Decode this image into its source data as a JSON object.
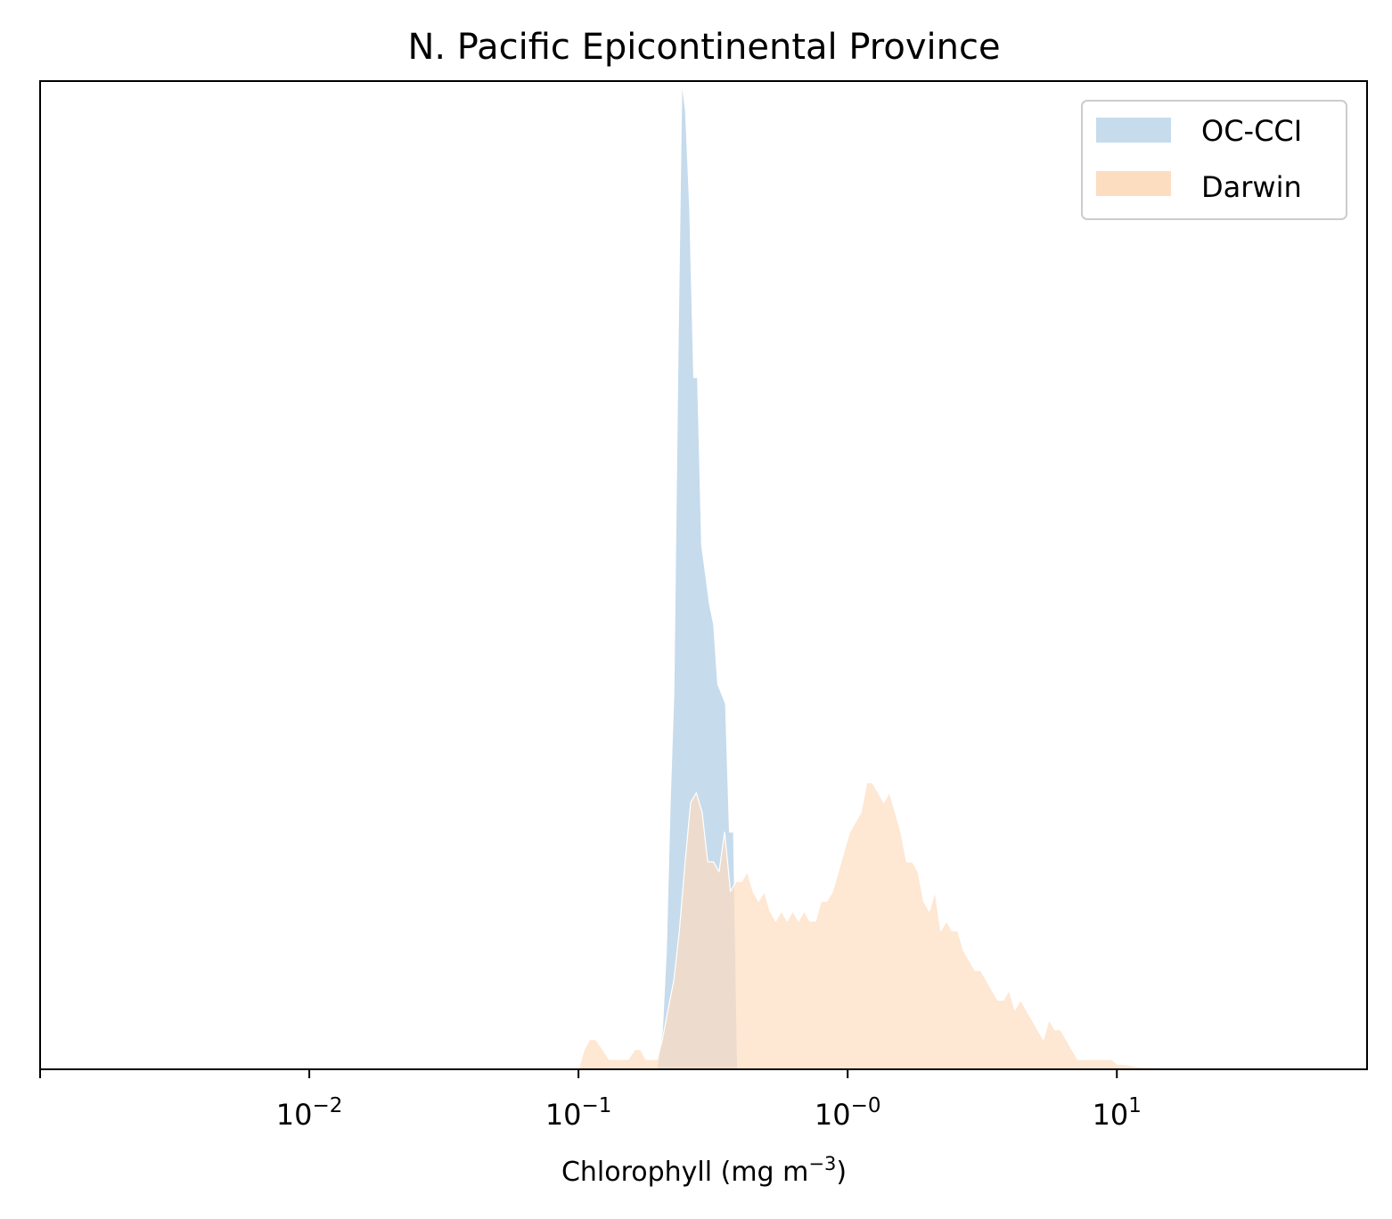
{
  "chart_data": {
    "type": "area",
    "title": "N. Pacific Epicontinental Province",
    "xlabel": "Chlorophyll  (mg m",
    "xlabel_sup": "−3",
    "xlabel_close": ")",
    "ylabel": "",
    "xscale": "log",
    "xlim": [
      0.001,
      85
    ],
    "ylim": [
      0,
      1
    ],
    "y_ticks_shown": false,
    "grid": false,
    "legend_position": "upper right",
    "x_ticks": [
      {
        "value": 0.01,
        "base": "10",
        "exp": "−2"
      },
      {
        "value": 0.1,
        "base": "10",
        "exp": "−1"
      },
      {
        "value": 1,
        "base": "10",
        "exp": "−0"
      },
      {
        "value": 10,
        "base": "10",
        "exp": "1"
      }
    ],
    "series": [
      {
        "name": "OC-CCI",
        "color": "#c6dbec",
        "points": [
          [
            0.195,
            0.0
          ],
          [
            0.198,
            0.01
          ],
          [
            0.205,
            0.04
          ],
          [
            0.212,
            0.12
          ],
          [
            0.219,
            0.27
          ],
          [
            0.226,
            0.38
          ],
          [
            0.234,
            0.72
          ],
          [
            0.242,
            1.0
          ],
          [
            0.25,
            0.97
          ],
          [
            0.259,
            0.87
          ],
          [
            0.268,
            0.7
          ],
          [
            0.277,
            0.7
          ],
          [
            0.287,
            0.53
          ],
          [
            0.297,
            0.5
          ],
          [
            0.307,
            0.47
          ],
          [
            0.318,
            0.45
          ],
          [
            0.329,
            0.39
          ],
          [
            0.34,
            0.38
          ],
          [
            0.352,
            0.37
          ],
          [
            0.364,
            0.24
          ],
          [
            0.377,
            0.24
          ],
          [
            0.39,
            0.0
          ]
        ]
      },
      {
        "name": "Darwin",
        "color": "#fdddc0",
        "points": [
          [
            0.1,
            0.0
          ],
          [
            0.105,
            0.02
          ],
          [
            0.11,
            0.03
          ],
          [
            0.116,
            0.03
          ],
          [
            0.123,
            0.02
          ],
          [
            0.13,
            0.01
          ],
          [
            0.137,
            0.01
          ],
          [
            0.145,
            0.01
          ],
          [
            0.153,
            0.01
          ],
          [
            0.162,
            0.02
          ],
          [
            0.17,
            0.02
          ],
          [
            0.178,
            0.01
          ],
          [
            0.187,
            0.01
          ],
          [
            0.196,
            0.01
          ],
          [
            0.205,
            0.03
          ],
          [
            0.215,
            0.06
          ],
          [
            0.226,
            0.09
          ],
          [
            0.237,
            0.14
          ],
          [
            0.249,
            0.21
          ],
          [
            0.261,
            0.27
          ],
          [
            0.274,
            0.28
          ],
          [
            0.288,
            0.26
          ],
          [
            0.302,
            0.21
          ],
          [
            0.317,
            0.21
          ],
          [
            0.333,
            0.2
          ],
          [
            0.349,
            0.24
          ],
          [
            0.367,
            0.18
          ],
          [
            0.385,
            0.19
          ],
          [
            0.404,
            0.19
          ],
          [
            0.424,
            0.2
          ],
          [
            0.445,
            0.18
          ],
          [
            0.467,
            0.17
          ],
          [
            0.49,
            0.18
          ],
          [
            0.515,
            0.16
          ],
          [
            0.54,
            0.15
          ],
          [
            0.567,
            0.16
          ],
          [
            0.596,
            0.15
          ],
          [
            0.625,
            0.16
          ],
          [
            0.657,
            0.15
          ],
          [
            0.689,
            0.16
          ],
          [
            0.724,
            0.15
          ],
          [
            0.76,
            0.15
          ],
          [
            0.797,
            0.17
          ],
          [
            0.837,
            0.17
          ],
          [
            0.879,
            0.18
          ],
          [
            0.923,
            0.2
          ],
          [
            0.969,
            0.22
          ],
          [
            1.017,
            0.24
          ],
          [
            1.068,
            0.25
          ],
          [
            1.121,
            0.26
          ],
          [
            1.177,
            0.29
          ],
          [
            1.236,
            0.29
          ],
          [
            1.298,
            0.28
          ],
          [
            1.362,
            0.27
          ],
          [
            1.43,
            0.28
          ],
          [
            1.502,
            0.26
          ],
          [
            1.577,
            0.24
          ],
          [
            1.655,
            0.21
          ],
          [
            1.738,
            0.21
          ],
          [
            1.825,
            0.2
          ],
          [
            1.916,
            0.17
          ],
          [
            2.011,
            0.16
          ],
          [
            2.112,
            0.18
          ],
          [
            2.217,
            0.14
          ],
          [
            2.328,
            0.15
          ],
          [
            2.444,
            0.14
          ],
          [
            2.566,
            0.14
          ],
          [
            2.694,
            0.12
          ],
          [
            2.829,
            0.11
          ],
          [
            2.97,
            0.1
          ],
          [
            3.119,
            0.1
          ],
          [
            3.275,
            0.09
          ],
          [
            3.438,
            0.08
          ],
          [
            3.61,
            0.07
          ],
          [
            3.791,
            0.07
          ],
          [
            3.98,
            0.08
          ],
          [
            4.179,
            0.06
          ],
          [
            4.388,
            0.07
          ],
          [
            4.607,
            0.06
          ],
          [
            4.838,
            0.05
          ],
          [
            5.08,
            0.04
          ],
          [
            5.334,
            0.03
          ],
          [
            5.6,
            0.05
          ],
          [
            5.88,
            0.04
          ],
          [
            6.174,
            0.04
          ],
          [
            6.483,
            0.03
          ],
          [
            6.807,
            0.02
          ],
          [
            7.148,
            0.01
          ],
          [
            7.505,
            0.01
          ],
          [
            7.88,
            0.01
          ],
          [
            8.274,
            0.01
          ],
          [
            8.688,
            0.01
          ],
          [
            9.122,
            0.01
          ],
          [
            9.579,
            0.01
          ],
          [
            10.058,
            0.005
          ],
          [
            10.56,
            0.005
          ],
          [
            11.09,
            0.004
          ],
          [
            11.64,
            0.003
          ],
          [
            12.22,
            0.002
          ],
          [
            12.83,
            0.002
          ],
          [
            13.48,
            0.002
          ],
          [
            14.15,
            0.001
          ],
          [
            14.86,
            0.001
          ],
          [
            15.6,
            0.0
          ]
        ]
      }
    ]
  }
}
